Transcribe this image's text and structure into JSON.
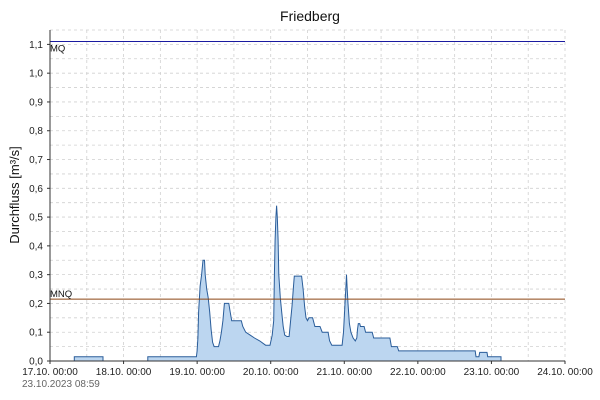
{
  "chart_data": {
    "type": "area",
    "title": "Friedberg",
    "ylabel": "Durchfluss [m³/s]",
    "xlabel": "",
    "timestamp": "23.10.2023  08:59",
    "x_ticks": [
      "17.10. 00:00",
      "18.10. 00:00",
      "19.10. 00:00",
      "20.10. 00:00",
      "21.10. 00:00",
      "22.10. 00:00",
      "23.10. 00:00",
      "24.10. 00:00"
    ],
    "y_ticks": [
      "0,0",
      "0,1",
      "0,2",
      "0,3",
      "0,4",
      "0,5",
      "0,6",
      "0,7",
      "0,8",
      "0,9",
      "1,0",
      "1,1"
    ],
    "xlim_days": [
      17,
      24
    ],
    "ylim": [
      0,
      1.15
    ],
    "grid": true,
    "colors": {
      "fill": "#bcd6f0",
      "line": "#2a5d9a",
      "mq": "#1a1aa0",
      "mnq": "#8b4513",
      "grid": "#d0d0d0"
    },
    "reference_lines": [
      {
        "label": "MQ",
        "value": 1.11
      },
      {
        "label": "MNQ",
        "value": 0.215
      }
    ],
    "series": [
      {
        "segments": [
          [
            [
              17.33,
              0.0
            ],
            [
              17.33,
              0.015
            ],
            [
              17.72,
              0.015
            ],
            [
              17.72,
              0.0
            ]
          ],
          [
            [
              18.33,
              0.0
            ],
            [
              18.33,
              0.015
            ],
            [
              18.99,
              0.015
            ],
            [
              19.0,
              0.035
            ],
            [
              19.01,
              0.08
            ],
            [
              19.02,
              0.17
            ],
            [
              19.04,
              0.26
            ],
            [
              19.06,
              0.3
            ],
            [
              19.08,
              0.35
            ],
            [
              19.1,
              0.35
            ],
            [
              19.11,
              0.3
            ],
            [
              19.13,
              0.25
            ],
            [
              19.15,
              0.22
            ],
            [
              19.17,
              0.17
            ],
            [
              19.19,
              0.11
            ],
            [
              19.21,
              0.065
            ],
            [
              19.23,
              0.05
            ],
            [
              19.29,
              0.05
            ],
            [
              19.31,
              0.07
            ],
            [
              19.33,
              0.1
            ],
            [
              19.35,
              0.14
            ],
            [
              19.37,
              0.2
            ],
            [
              19.43,
              0.2
            ],
            [
              19.45,
              0.17
            ],
            [
              19.47,
              0.14
            ],
            [
              19.6,
              0.14
            ],
            [
              19.62,
              0.12
            ],
            [
              19.66,
              0.1
            ],
            [
              19.72,
              0.09
            ],
            [
              19.78,
              0.08
            ],
            [
              19.85,
              0.07
            ],
            [
              19.93,
              0.055
            ],
            [
              19.99,
              0.055
            ],
            [
              20.02,
              0.09
            ],
            [
              20.04,
              0.14
            ],
            [
              20.05,
              0.3
            ],
            [
              20.06,
              0.42
            ],
            [
              20.07,
              0.5
            ],
            [
              20.08,
              0.54
            ],
            [
              20.09,
              0.5
            ],
            [
              20.1,
              0.42
            ],
            [
              20.11,
              0.3
            ],
            [
              20.13,
              0.22
            ],
            [
              20.15,
              0.17
            ],
            [
              20.17,
              0.12
            ],
            [
              20.19,
              0.09
            ],
            [
              20.22,
              0.085
            ],
            [
              20.25,
              0.085
            ],
            [
              20.27,
              0.14
            ],
            [
              20.29,
              0.19
            ],
            [
              20.31,
              0.26
            ],
            [
              20.32,
              0.295
            ],
            [
              20.42,
              0.295
            ],
            [
              20.44,
              0.25
            ],
            [
              20.46,
              0.19
            ],
            [
              20.48,
              0.15
            ],
            [
              20.5,
              0.14
            ],
            [
              20.52,
              0.15
            ],
            [
              20.57,
              0.15
            ],
            [
              20.6,
              0.12
            ],
            [
              20.67,
              0.12
            ],
            [
              20.7,
              0.1
            ],
            [
              20.78,
              0.1
            ],
            [
              20.8,
              0.07
            ],
            [
              20.83,
              0.055
            ],
            [
              20.97,
              0.055
            ],
            [
              20.99,
              0.1
            ],
            [
              21.01,
              0.2
            ],
            [
              21.02,
              0.25
            ],
            [
              21.03,
              0.3
            ],
            [
              21.04,
              0.25
            ],
            [
              21.05,
              0.2
            ],
            [
              21.07,
              0.13
            ],
            [
              21.09,
              0.1
            ],
            [
              21.12,
              0.08
            ],
            [
              21.15,
              0.07
            ],
            [
              21.17,
              0.08
            ],
            [
              21.18,
              0.11
            ],
            [
              21.19,
              0.13
            ],
            [
              21.21,
              0.13
            ],
            [
              21.22,
              0.12
            ],
            [
              21.27,
              0.12
            ],
            [
              21.29,
              0.1
            ],
            [
              21.38,
              0.1
            ],
            [
              21.4,
              0.08
            ],
            [
              21.62,
              0.08
            ],
            [
              21.64,
              0.05
            ],
            [
              21.72,
              0.05
            ],
            [
              21.74,
              0.035
            ],
            [
              22.78,
              0.035
            ],
            [
              22.79,
              0.015
            ],
            [
              22.83,
              0.015
            ],
            [
              22.84,
              0.03
            ],
            [
              22.94,
              0.03
            ],
            [
              22.95,
              0.015
            ],
            [
              23.13,
              0.015
            ],
            [
              23.13,
              0.0
            ]
          ]
        ]
      }
    ]
  }
}
